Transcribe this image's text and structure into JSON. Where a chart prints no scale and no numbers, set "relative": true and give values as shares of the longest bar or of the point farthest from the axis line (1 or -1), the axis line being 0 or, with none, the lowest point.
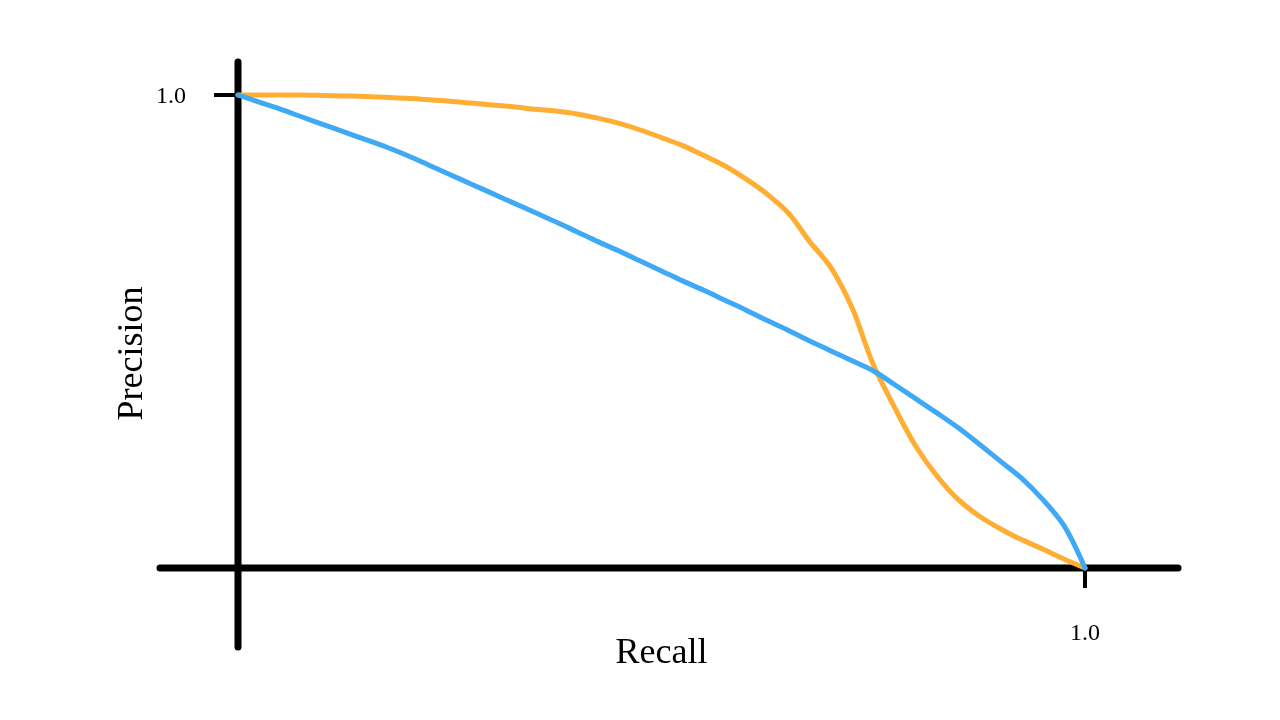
{
  "chart_data": {
    "type": "line",
    "relative": true,
    "xlabel": "Recall",
    "ylabel": "Precision",
    "categories": [
      null,
      null,
      null,
      null,
      null,
      null,
      null,
      null,
      null,
      null,
      null,
      null,
      null,
      null,
      null,
      null,
      null,
      null,
      null,
      null,
      null,
      null,
      null,
      null,
      null,
      null,
      null,
      null,
      null,
      null,
      null,
      null,
      null,
      null,
      null,
      null,
      null,
      null,
      null,
      null,
      null
    ],
    "annotations": [
      "1.0",
      "1.0"
    ],
    "legend": false,
    "marker": "none",
    "line_style": "solid",
    "series": [
      {
        "color": "#ffad33",
        "values": [
          1.0,
          1.0,
          1.0,
          1.0,
          0.999,
          0.998,
          0.997,
          0.995,
          0.993,
          0.99,
          0.987,
          0.983,
          0.979,
          0.975,
          0.97,
          0.966,
          0.96,
          0.951,
          0.94,
          0.926,
          0.91,
          0.893,
          0.872,
          0.85,
          0.822,
          0.79,
          0.75,
          0.69,
          0.635,
          0.55,
          0.43,
          0.34,
          0.258,
          0.195,
          0.145,
          0.11,
          0.083,
          0.06,
          0.04,
          0.019,
          0
        ]
      },
      {
        "color": "#3fa9f5",
        "values": [
          1.0,
          0.985,
          0.97,
          0.954,
          0.938,
          0.922,
          0.906,
          0.89,
          0.872,
          0.852,
          0.832,
          0.812,
          0.792,
          0.772,
          0.752,
          0.732,
          0.711,
          0.69,
          0.67,
          0.649,
          0.628,
          0.607,
          0.587,
          0.566,
          0.545,
          0.523,
          0.502,
          0.48,
          0.459,
          0.438,
          0.417,
          0.388,
          0.358,
          0.328,
          0.297,
          0.262,
          0.226,
          0.19,
          0.145,
          0.09,
          0
        ]
      }
    ]
  }
}
